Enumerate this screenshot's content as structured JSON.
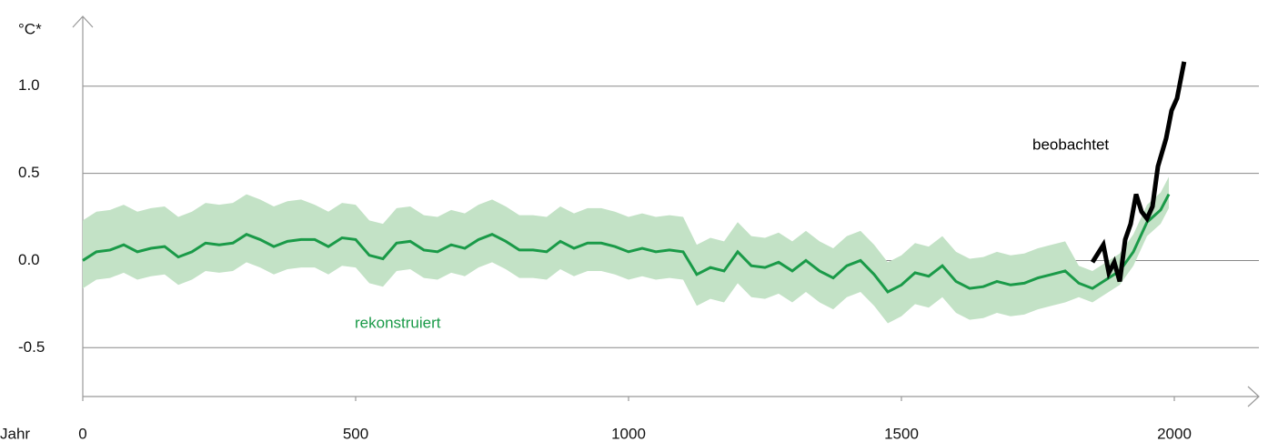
{
  "chart_data": {
    "type": "line",
    "y_label": "°C*",
    "x_label": "Jahr",
    "xlim": [
      0,
      2155
    ],
    "ylim": [
      -0.78,
      1.4
    ],
    "xticks": [
      0,
      500,
      1000,
      1500,
      2000
    ],
    "yticks": [
      {
        "value": 1.0,
        "label": "1.0"
      },
      {
        "value": 0.5,
        "label": "0.5"
      },
      {
        "value": 0.0,
        "label": "0.0"
      },
      {
        "value": -0.5,
        "label": "-0.5"
      }
    ],
    "grid": true,
    "series": [
      {
        "name": "rekonstruiert",
        "color": "#1a9a48",
        "band_color": "#c3e2c6",
        "x": [
          0,
          25,
          50,
          75,
          100,
          125,
          150,
          175,
          200,
          225,
          250,
          275,
          300,
          325,
          350,
          375,
          400,
          425,
          450,
          475,
          500,
          525,
          550,
          575,
          600,
          625,
          650,
          675,
          700,
          725,
          750,
          775,
          800,
          825,
          850,
          875,
          900,
          925,
          950,
          975,
          1000,
          1025,
          1050,
          1075,
          1100,
          1125,
          1150,
          1175,
          1200,
          1225,
          1250,
          1275,
          1300,
          1325,
          1350,
          1375,
          1400,
          1425,
          1450,
          1475,
          1500,
          1525,
          1550,
          1575,
          1600,
          1625,
          1650,
          1675,
          1700,
          1725,
          1750,
          1775,
          1800,
          1825,
          1850,
          1875,
          1900,
          1925,
          1950,
          1975,
          1990
        ],
        "values": [
          0,
          0.05,
          0.06,
          0.09,
          0.05,
          0.07,
          0.08,
          0.02,
          0.05,
          0.1,
          0.09,
          0.1,
          0.15,
          0.12,
          0.08,
          0.11,
          0.12,
          0.12,
          0.08,
          0.13,
          0.12,
          0.03,
          0.01,
          0.1,
          0.11,
          0.06,
          0.05,
          0.09,
          0.07,
          0.12,
          0.15,
          0.11,
          0.06,
          0.06,
          0.05,
          0.11,
          0.07,
          0.1,
          0.1,
          0.08,
          0.05,
          0.07,
          0.05,
          0.06,
          0.05,
          -0.08,
          -0.04,
          -0.06,
          0.05,
          -0.03,
          -0.04,
          -0.01,
          -0.06,
          0.0,
          -0.06,
          -0.1,
          -0.03,
          0.0,
          -0.08,
          -0.18,
          -0.14,
          -0.07,
          -0.09,
          -0.03,
          -0.12,
          -0.16,
          -0.15,
          -0.12,
          -0.14,
          -0.13,
          -0.1,
          -0.08,
          -0.06,
          -0.13,
          -0.16,
          -0.11,
          -0.06,
          0.05,
          0.22,
          0.29,
          0.38
        ],
        "upper": [
          0.23,
          0.28,
          0.29,
          0.32,
          0.28,
          0.3,
          0.31,
          0.25,
          0.28,
          0.33,
          0.32,
          0.33,
          0.38,
          0.35,
          0.31,
          0.34,
          0.35,
          0.32,
          0.28,
          0.33,
          0.32,
          0.23,
          0.21,
          0.3,
          0.31,
          0.26,
          0.25,
          0.29,
          0.27,
          0.32,
          0.35,
          0.31,
          0.26,
          0.26,
          0.25,
          0.31,
          0.27,
          0.3,
          0.3,
          0.28,
          0.25,
          0.27,
          0.25,
          0.26,
          0.25,
          0.09,
          0.13,
          0.11,
          0.22,
          0.14,
          0.13,
          0.16,
          0.11,
          0.17,
          0.11,
          0.07,
          0.14,
          0.17,
          0.09,
          -0.01,
          0.03,
          0.1,
          0.08,
          0.14,
          0.05,
          0.01,
          0.02,
          0.05,
          0.03,
          0.04,
          0.07,
          0.09,
          0.11,
          -0.03,
          -0.06,
          -0.01,
          0.04,
          0.15,
          0.32,
          0.39,
          0.48
        ],
        "lower": [
          -0.16,
          -0.11,
          -0.1,
          -0.07,
          -0.11,
          -0.09,
          -0.08,
          -0.14,
          -0.11,
          -0.06,
          -0.07,
          -0.06,
          -0.01,
          -0.04,
          -0.08,
          -0.05,
          -0.04,
          -0.04,
          -0.08,
          -0.03,
          -0.04,
          -0.13,
          -0.15,
          -0.06,
          -0.05,
          -0.1,
          -0.11,
          -0.07,
          -0.09,
          -0.04,
          -0.01,
          -0.05,
          -0.1,
          -0.1,
          -0.11,
          -0.05,
          -0.09,
          -0.06,
          -0.06,
          -0.08,
          -0.11,
          -0.09,
          -0.11,
          -0.1,
          -0.11,
          -0.26,
          -0.22,
          -0.24,
          -0.13,
          -0.21,
          -0.22,
          -0.19,
          -0.24,
          -0.18,
          -0.24,
          -0.28,
          -0.21,
          -0.18,
          -0.26,
          -0.36,
          -0.32,
          -0.25,
          -0.27,
          -0.21,
          -0.3,
          -0.34,
          -0.33,
          -0.3,
          -0.32,
          -0.31,
          -0.28,
          -0.26,
          -0.24,
          -0.21,
          -0.24,
          -0.19,
          -0.14,
          -0.03,
          0.14,
          0.21,
          0.3
        ]
      },
      {
        "name": "beobachtet",
        "color": "#000000",
        "x": [
          1850,
          1870,
          1880,
          1890,
          1900,
          1910,
          1920,
          1930,
          1940,
          1950,
          1960,
          1970,
          1985,
          1995,
          2005,
          2018
        ],
        "values": [
          -0.01,
          0.09,
          -0.07,
          -0.01,
          -0.12,
          0.12,
          0.21,
          0.38,
          0.28,
          0.24,
          0.31,
          0.54,
          0.7,
          0.86,
          0.93,
          1.14
        ]
      }
    ]
  }
}
